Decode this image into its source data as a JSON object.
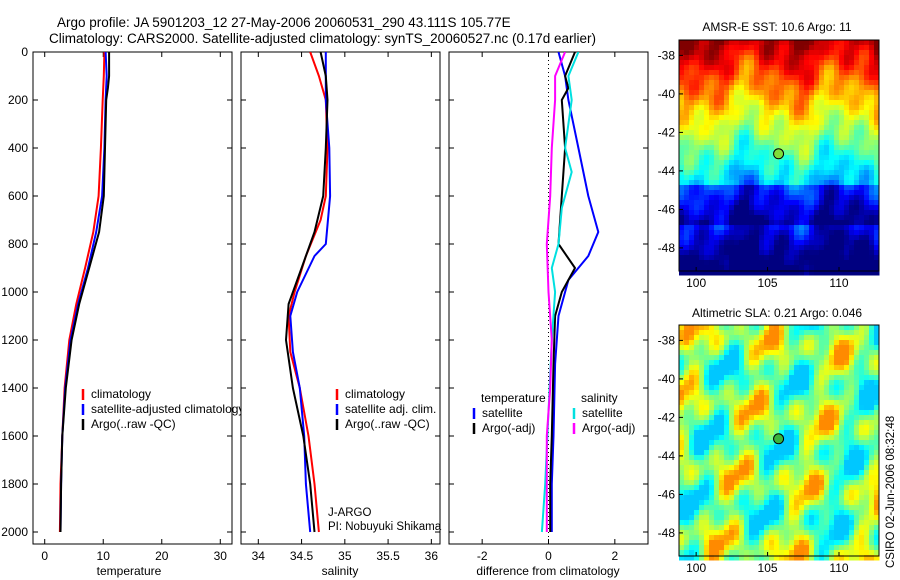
{
  "header": {
    "line1": "Argo profile: JA 5901203_12 27-May-2006 20060531_290 43.111S 105.77E",
    "line2": "Climatology: CARS2000. Satellite-adjusted climatology: synTS_20060527.nc (0.17d earlier)"
  },
  "credit": "CSIRO 02-Jun-2006 08:32:48",
  "chart_data": [
    {
      "id": "temperature",
      "type": "line",
      "xlabel": "temperature",
      "xlim": [
        -2,
        32
      ],
      "ylim": [
        2050,
        0
      ],
      "x_ticks": [
        0,
        10,
        20,
        30
      ],
      "y_ticks": [
        0,
        200,
        400,
        600,
        800,
        1000,
        1200,
        1400,
        1600,
        1800,
        2000
      ],
      "legend": {
        "placement": "bottom-right",
        "entries": [
          {
            "label": "climatology",
            "color": "#ff0000"
          },
          {
            "label": "satellite-adjusted climatology",
            "color": "#0000ff"
          },
          {
            "label": "Argo(..raw -QC)",
            "color": "#000000"
          }
        ]
      },
      "series": [
        {
          "color": "#ff0000",
          "points": [
            [
              10.2,
              0
            ],
            [
              10.1,
              100
            ],
            [
              9.9,
              200
            ],
            [
              9.6,
              400
            ],
            [
              9.2,
              600
            ],
            [
              8.3,
              750
            ],
            [
              6.9,
              900
            ],
            [
              5.4,
              1050
            ],
            [
              4.2,
              1200
            ],
            [
              3.4,
              1400
            ],
            [
              3.0,
              1600
            ],
            [
              2.7,
              1800
            ],
            [
              2.6,
              2000
            ]
          ]
        },
        {
          "color": "#0000ff",
          "points": [
            [
              10.4,
              0
            ],
            [
              10.6,
              100
            ],
            [
              10.4,
              200
            ],
            [
              10.2,
              400
            ],
            [
              9.8,
              600
            ],
            [
              8.8,
              750
            ],
            [
              7.4,
              900
            ],
            [
              5.7,
              1050
            ],
            [
              4.4,
              1200
            ],
            [
              3.5,
              1400
            ],
            [
              3.0,
              1600
            ],
            [
              2.8,
              1800
            ],
            [
              2.7,
              2000
            ]
          ]
        },
        {
          "color": "#000000",
          "points": [
            [
              11.0,
              0
            ],
            [
              11.0,
              100
            ],
            [
              10.8,
              150
            ],
            [
              10.5,
              200
            ],
            [
              10.3,
              400
            ],
            [
              10.1,
              600
            ],
            [
              9.3,
              750
            ],
            [
              7.6,
              900
            ],
            [
              5.9,
              1050
            ],
            [
              4.6,
              1200
            ],
            [
              3.6,
              1400
            ],
            [
              3.0,
              1600
            ],
            [
              2.8,
              1800
            ],
            [
              2.7,
              2000
            ]
          ]
        }
      ]
    },
    {
      "id": "salinity",
      "type": "line",
      "xlabel": "salinity",
      "xlim": [
        33.8,
        36.1
      ],
      "ylim": [
        2050,
        0
      ],
      "x_ticks": [
        34,
        34.5,
        35,
        35.5,
        36
      ],
      "legend": {
        "placement": "bottom-right",
        "entries": [
          {
            "label": "climatology",
            "color": "#ff0000"
          },
          {
            "label": "satellite adj. clim.",
            "color": "#0000ff"
          },
          {
            "label": "Argo(..raw -QC)",
            "color": "#000000"
          }
        ]
      },
      "annotation": [
        "J-ARGO",
        "PI: Nobuyuki Shikama"
      ],
      "series": [
        {
          "color": "#ff0000",
          "points": [
            [
              34.6,
              0
            ],
            [
              34.7,
              100
            ],
            [
              34.78,
              200
            ],
            [
              34.8,
              400
            ],
            [
              34.78,
              600
            ],
            [
              34.72,
              700
            ],
            [
              34.55,
              850
            ],
            [
              34.42,
              1000
            ],
            [
              34.35,
              1100
            ],
            [
              34.37,
              1250
            ],
            [
              34.48,
              1400
            ],
            [
              34.58,
              1600
            ],
            [
              34.65,
              1800
            ],
            [
              34.7,
              2000
            ]
          ]
        },
        {
          "color": "#0000ff",
          "points": [
            [
              34.78,
              0
            ],
            [
              34.78,
              200
            ],
            [
              34.82,
              400
            ],
            [
              34.83,
              600
            ],
            [
              34.78,
              800
            ],
            [
              34.65,
              850
            ],
            [
              34.45,
              1000
            ],
            [
              34.37,
              1100
            ],
            [
              34.4,
              1250
            ],
            [
              34.48,
              1400
            ],
            [
              34.53,
              1600
            ],
            [
              34.55,
              1800
            ],
            [
              34.6,
              2000
            ]
          ]
        },
        {
          "color": "#000000",
          "points": [
            [
              34.72,
              0
            ],
            [
              34.78,
              100
            ],
            [
              34.8,
              200
            ],
            [
              34.78,
              400
            ],
            [
              34.75,
              600
            ],
            [
              34.65,
              750
            ],
            [
              34.5,
              900
            ],
            [
              34.35,
              1050
            ],
            [
              34.32,
              1200
            ],
            [
              34.4,
              1400
            ],
            [
              34.52,
              1600
            ],
            [
              34.6,
              1800
            ],
            [
              34.65,
              2000
            ]
          ]
        }
      ]
    },
    {
      "id": "difference",
      "type": "line",
      "xlabel": "difference from climatology",
      "xlim": [
        -3.0,
        3.0
      ],
      "ylim": [
        2050,
        0
      ],
      "x_ticks": [
        -2,
        0,
        2
      ],
      "legend": {
        "placement": "bottom-right",
        "entries": [
          {
            "label": "temperature",
            "color": "#000000",
            "column": 0,
            "header": true
          },
          {
            "label": "satellite",
            "color": "#0000ff",
            "column": 0
          },
          {
            "label": "Argo(-adj)",
            "color": "#000000",
            "column": 0
          },
          {
            "label": "salinity",
            "color": "#000000",
            "column": 1,
            "header": true
          },
          {
            "label": "satellite",
            "color": "#00e0e0",
            "column": 1
          },
          {
            "label": "Argo(-adj)",
            "color": "#ff00ff",
            "column": 1
          }
        ]
      },
      "series": [
        {
          "color": "#0000ff",
          "points": [
            [
              0.3,
              0
            ],
            [
              0.5,
              100
            ],
            [
              0.6,
              200
            ],
            [
              0.9,
              400
            ],
            [
              1.2,
              600
            ],
            [
              1.5,
              750
            ],
            [
              1.2,
              850
            ],
            [
              0.6,
              950
            ],
            [
              0.3,
              1100
            ],
            [
              0.2,
              1300
            ],
            [
              0.15,
              1600
            ],
            [
              0.1,
              1800
            ],
            [
              0.1,
              2000
            ]
          ]
        },
        {
          "color": "#000000",
          "points": [
            [
              0.8,
              0
            ],
            [
              0.5,
              100
            ],
            [
              0.6,
              150
            ],
            [
              0.4,
              200
            ],
            [
              0.5,
              400
            ],
            [
              0.4,
              600
            ],
            [
              0.3,
              800
            ],
            [
              0.8,
              900
            ],
            [
              0.4,
              1000
            ],
            [
              0.2,
              1100
            ],
            [
              0.15,
              1300
            ],
            [
              0.1,
              1600
            ],
            [
              0.05,
              1800
            ],
            [
              0.05,
              2000
            ]
          ]
        },
        {
          "color": "#00e0e0",
          "points": [
            [
              0.9,
              0
            ],
            [
              0.6,
              100
            ],
            [
              0.7,
              200
            ],
            [
              0.5,
              400
            ],
            [
              0.7,
              500
            ],
            [
              0.4,
              650
            ],
            [
              0.3,
              800
            ],
            [
              0.1,
              900
            ],
            [
              0.2,
              1000
            ],
            [
              0.1,
              1200
            ],
            [
              0.0,
              1500
            ],
            [
              -0.1,
              1800
            ],
            [
              -0.2,
              2000
            ]
          ]
        },
        {
          "color": "#ff00ff",
          "points": [
            [
              0.5,
              0
            ],
            [
              0.2,
              100
            ],
            [
              0.2,
              200
            ],
            [
              0.1,
              400
            ],
            [
              0.05,
              600
            ],
            [
              -0.05,
              800
            ],
            [
              0.0,
              1000
            ],
            [
              0.1,
              1200
            ],
            [
              0.05,
              1400
            ],
            [
              -0.05,
              1600
            ],
            [
              -0.05,
              1800
            ],
            [
              -0.05,
              2000
            ]
          ]
        }
      ]
    },
    {
      "id": "sst_map",
      "type": "heatmap",
      "title": "AMSR-E SST: 10.6 Argo: 11",
      "x_ticks": [
        100,
        105,
        110
      ],
      "y_ticks": [
        -38,
        -40,
        -42,
        -44,
        -46,
        -48
      ],
      "xlim": [
        98.8,
        112.8
      ],
      "ylim": [
        -49.2,
        -37.2
      ],
      "marker": {
        "lon": 105.77,
        "lat": -43.11
      }
    },
    {
      "id": "sla_map",
      "type": "heatmap",
      "title": "Altimetric SLA: 0.21 Argo: 0.046",
      "x_ticks": [
        100,
        105,
        110
      ],
      "y_ticks": [
        -38,
        -40,
        -42,
        -44,
        -46,
        -48
      ],
      "xlim": [
        98.8,
        112.8
      ],
      "ylim": [
        -49.2,
        -37.2
      ],
      "marker": {
        "lon": 105.77,
        "lat": -43.11
      }
    }
  ]
}
